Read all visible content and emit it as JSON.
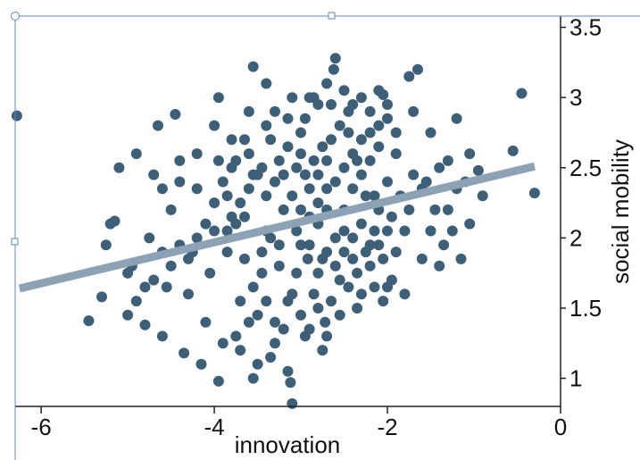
{
  "chart_data": {
    "type": "scatter",
    "title": "",
    "xlabel": "innovation",
    "ylabel": "social mobility",
    "xlim": [
      -6.3,
      0
    ],
    "ylim": [
      0.8,
      3.58
    ],
    "x_ticks": [
      {
        "value": -6,
        "label": "-6"
      },
      {
        "value": -4,
        "label": "-4"
      },
      {
        "value": -2,
        "label": "-2"
      },
      {
        "value": 0,
        "label": "0"
      }
    ],
    "y_ticks": [
      {
        "value": 1,
        "label": "1"
      },
      {
        "value": 1.5,
        "label": "1.5"
      },
      {
        "value": 2,
        "label": "2"
      },
      {
        "value": 2.5,
        "label": "2.5"
      },
      {
        "value": 3,
        "label": "3"
      },
      {
        "value": 3.5,
        "label": "3.5"
      }
    ],
    "grid": false,
    "y_axis_side": "right",
    "trend_line": {
      "x": [
        -6.25,
        -0.3
      ],
      "y": [
        1.64,
        2.51
      ]
    },
    "series": [
      {
        "marker_color": "#3d5f78",
        "points": [
          [
            -6.28,
            2.87
          ],
          [
            -0.45,
            3.03
          ],
          [
            -0.3,
            2.32
          ],
          [
            -0.55,
            2.62
          ],
          [
            -0.9,
            2.3
          ],
          [
            -1.2,
            2.85
          ],
          [
            -1.3,
            2.55
          ],
          [
            -1.35,
            1.95
          ],
          [
            -1.5,
            2.75
          ],
          [
            -1.7,
            2.9
          ],
          [
            -1.75,
            3.15
          ],
          [
            -1.65,
            3.2
          ],
          [
            -1.55,
            2.4
          ],
          [
            -1.8,
            1.6
          ],
          [
            -1.95,
            2.15
          ],
          [
            -2.0,
            2.85
          ],
          [
            -2.05,
            3.02
          ],
          [
            -2.1,
            2.65
          ],
          [
            -2.15,
            2.3
          ],
          [
            -2.2,
            1.8
          ],
          [
            -2.3,
            2.45
          ],
          [
            -2.35,
            1.5
          ],
          [
            -2.4,
            2.0
          ],
          [
            -2.45,
            2.75
          ],
          [
            -2.5,
            2.2
          ],
          [
            -2.55,
            1.7
          ],
          [
            -2.6,
            3.28
          ],
          [
            -2.62,
            3.2
          ],
          [
            -2.65,
            2.95
          ],
          [
            -2.7,
            2.55
          ],
          [
            -2.72,
            1.4
          ],
          [
            -2.75,
            1.2
          ],
          [
            -2.8,
            2.1
          ],
          [
            -2.85,
            3.0
          ],
          [
            -2.9,
            2.35
          ],
          [
            -2.92,
            1.85
          ],
          [
            -2.95,
            1.3
          ],
          [
            -3.0,
            2.6
          ],
          [
            -3.05,
            2.05
          ],
          [
            -3.1,
            1.6
          ],
          [
            -3.12,
            0.97
          ],
          [
            -3.15,
            1.05
          ],
          [
            -3.1,
            0.82
          ],
          [
            -3.2,
            2.45
          ],
          [
            -3.25,
            1.95
          ],
          [
            -3.3,
            1.4
          ],
          [
            -3.35,
            1.15
          ],
          [
            -3.4,
            2.3
          ],
          [
            -3.45,
            1.75
          ],
          [
            -3.5,
            1.1
          ],
          [
            -3.55,
            1.0
          ],
          [
            -3.6,
            2.6
          ],
          [
            -3.65,
            2.15
          ],
          [
            -3.7,
            1.55
          ],
          [
            -3.75,
            1.3
          ],
          [
            -3.8,
            2.5
          ],
          [
            -3.85,
            2.05
          ],
          [
            -3.9,
            1.25
          ],
          [
            -3.95,
            0.98
          ],
          [
            -4.0,
            2.25
          ],
          [
            -4.05,
            1.75
          ],
          [
            -4.1,
            1.4
          ],
          [
            -4.15,
            1.1
          ],
          [
            -4.2,
            2.35
          ],
          [
            -4.25,
            1.9
          ],
          [
            -4.3,
            1.6
          ],
          [
            -4.35,
            1.18
          ],
          [
            -4.4,
            2.55
          ],
          [
            -4.5,
            2.2
          ],
          [
            -4.55,
            1.65
          ],
          [
            -4.6,
            1.3
          ],
          [
            -4.7,
            2.45
          ],
          [
            -4.75,
            2.0
          ],
          [
            -4.8,
            1.38
          ],
          [
            -4.9,
            2.6
          ],
          [
            -4.95,
            1.8
          ],
          [
            -5.0,
            1.45
          ],
          [
            -5.1,
            2.5
          ],
          [
            -5.2,
            2.1
          ],
          [
            -5.25,
            1.95
          ],
          [
            -5.3,
            1.58
          ],
          [
            -5.45,
            1.41
          ],
          [
            -5.15,
            2.12
          ],
          [
            -4.65,
            2.8
          ],
          [
            -4.45,
            2.88
          ],
          [
            -3.95,
            3.0
          ],
          [
            -3.55,
            3.22
          ],
          [
            -3.4,
            3.1
          ],
          [
            -3.15,
            2.85
          ],
          [
            -2.95,
            2.85
          ],
          [
            -2.8,
            2.45
          ],
          [
            -2.7,
            2.2
          ],
          [
            -2.6,
            2.0
          ],
          [
            -2.5,
            1.9
          ],
          [
            -2.4,
            2.35
          ],
          [
            -2.3,
            2.1
          ],
          [
            -2.2,
            2.55
          ],
          [
            -2.1,
            1.95
          ],
          [
            -2.0,
            2.4
          ],
          [
            -1.9,
            2.6
          ],
          [
            -1.85,
            2.3
          ],
          [
            -1.75,
            2.2
          ],
          [
            -1.7,
            2.45
          ],
          [
            -1.6,
            2.35
          ],
          [
            -1.45,
            2.2
          ],
          [
            -1.4,
            2.5
          ],
          [
            -1.25,
            2.05
          ],
          [
            -1.1,
            2.4
          ],
          [
            -1.05,
            2.6
          ],
          [
            -0.95,
            2.48
          ],
          [
            -2.75,
            1.85
          ],
          [
            -2.85,
            1.6
          ],
          [
            -2.65,
            1.55
          ],
          [
            -2.55,
            1.45
          ],
          [
            -2.45,
            1.65
          ],
          [
            -2.35,
            1.75
          ],
          [
            -2.25,
            1.9
          ],
          [
            -2.15,
            1.65
          ],
          [
            -2.05,
            1.55
          ],
          [
            -1.95,
            1.7
          ],
          [
            -3.0,
            1.95
          ],
          [
            -3.05,
            1.75
          ],
          [
            -3.15,
            1.55
          ],
          [
            -3.25,
            1.8
          ],
          [
            -3.35,
            2.0
          ],
          [
            -3.45,
            1.9
          ],
          [
            -3.55,
            1.65
          ],
          [
            -3.65,
            1.85
          ],
          [
            -3.75,
            2.1
          ],
          [
            -3.85,
            1.9
          ],
          [
            -3.0,
            2.2
          ],
          [
            -2.9,
            2.15
          ],
          [
            -2.8,
            2.25
          ],
          [
            -2.7,
            2.35
          ],
          [
            -2.6,
            2.4
          ],
          [
            -2.5,
            2.5
          ],
          [
            -2.4,
            2.6
          ],
          [
            -2.3,
            2.7
          ],
          [
            -2.2,
            2.75
          ],
          [
            -2.1,
            2.8
          ],
          [
            -3.1,
            2.3
          ],
          [
            -3.2,
            2.2
          ],
          [
            -3.3,
            2.4
          ],
          [
            -3.4,
            2.05
          ],
          [
            -3.5,
            2.45
          ],
          [
            -3.6,
            2.35
          ],
          [
            -3.7,
            2.25
          ],
          [
            -3.8,
            2.15
          ],
          [
            -3.9,
            2.4
          ],
          [
            -4.0,
            2.05
          ],
          [
            -2.95,
            2.45
          ],
          [
            -2.85,
            2.55
          ],
          [
            -2.75,
            2.65
          ],
          [
            -2.65,
            2.7
          ],
          [
            -2.55,
            2.8
          ],
          [
            -2.45,
            2.9
          ],
          [
            -2.35,
            2.55
          ],
          [
            -2.25,
            2.3
          ],
          [
            -2.15,
            2.05
          ],
          [
            -2.05,
            1.85
          ],
          [
            -3.05,
            2.5
          ],
          [
            -3.15,
            2.65
          ],
          [
            -3.25,
            2.55
          ],
          [
            -3.35,
            2.7
          ],
          [
            -3.45,
            2.5
          ],
          [
            -3.55,
            2.45
          ],
          [
            -3.65,
            2.7
          ],
          [
            -3.75,
            2.55
          ],
          [
            -3.85,
            2.3
          ],
          [
            -3.95,
            2.55
          ],
          [
            -2.9,
            1.95
          ],
          [
            -2.8,
            1.75
          ],
          [
            -2.7,
            1.9
          ],
          [
            -2.6,
            1.8
          ],
          [
            -2.5,
            2.05
          ],
          [
            -2.4,
            1.85
          ],
          [
            -2.3,
            1.6
          ],
          [
            -2.2,
            1.95
          ],
          [
            -2.1,
            2.2
          ],
          [
            -2.0,
            2.05
          ],
          [
            -4.1,
            2.1
          ],
          [
            -4.2,
            2.0
          ],
          [
            -4.3,
            1.85
          ],
          [
            -4.4,
            1.95
          ],
          [
            -4.5,
            1.8
          ],
          [
            -4.6,
            1.9
          ],
          [
            -4.7,
            1.7
          ],
          [
            -4.8,
            1.65
          ],
          [
            -4.9,
            1.55
          ],
          [
            -5.0,
            1.75
          ],
          [
            -1.8,
            2.05
          ],
          [
            -1.9,
            1.9
          ],
          [
            -2.0,
            1.65
          ],
          [
            -1.6,
            1.85
          ],
          [
            -1.5,
            2.05
          ],
          [
            -1.4,
            1.8
          ],
          [
            -1.3,
            2.2
          ],
          [
            -1.2,
            2.35
          ],
          [
            -1.15,
            1.85
          ],
          [
            -1.05,
            2.1
          ],
          [
            -3.3,
            1.25
          ],
          [
            -3.2,
            1.35
          ],
          [
            -3.0,
            1.45
          ],
          [
            -2.9,
            1.35
          ],
          [
            -2.8,
            1.5
          ],
          [
            -2.7,
            1.3
          ],
          [
            -3.5,
            1.45
          ],
          [
            -3.4,
            1.55
          ],
          [
            -3.6,
            1.4
          ],
          [
            -3.7,
            1.2
          ],
          [
            -2.9,
            3.0
          ],
          [
            -2.8,
            2.95
          ],
          [
            -2.7,
            3.1
          ],
          [
            -2.5,
            3.05
          ],
          [
            -2.4,
            2.95
          ],
          [
            -2.3,
            3.0
          ],
          [
            -2.2,
            2.9
          ],
          [
            -2.1,
            3.05
          ],
          [
            -2.0,
            2.95
          ],
          [
            -1.9,
            2.75
          ],
          [
            -3.3,
            2.9
          ],
          [
            -3.1,
            3.0
          ],
          [
            -3.0,
            2.75
          ],
          [
            -3.4,
            2.8
          ],
          [
            -3.6,
            2.9
          ],
          [
            -3.8,
            2.7
          ],
          [
            -4.0,
            2.8
          ],
          [
            -4.2,
            2.6
          ],
          [
            -4.4,
            2.4
          ],
          [
            -4.6,
            2.35
          ]
        ]
      }
    ]
  }
}
